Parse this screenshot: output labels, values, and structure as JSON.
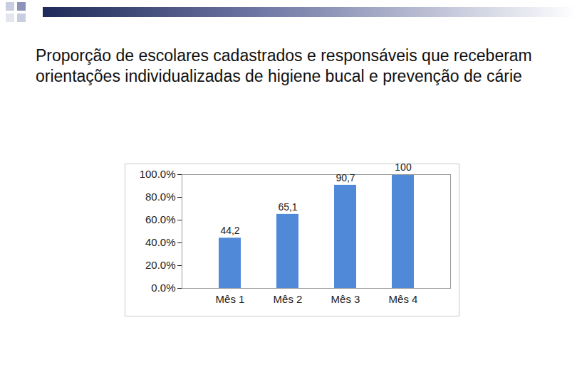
{
  "chart_data": {
    "type": "bar",
    "title": "Proporção de escolares cadastrados e responsáveis que receberam orientações individualizadas de higiene bucal e prevenção de cárie",
    "categories": [
      "Mês 1",
      "Mês 2",
      "Mês 3",
      "Mês 4"
    ],
    "values": [
      44.2,
      65.1,
      90.7,
      100
    ],
    "value_labels": [
      "44,2",
      "65,1",
      "90,7",
      "100"
    ],
    "data_labels": true,
    "color": "#5089d8",
    "ylim": [
      0,
      100
    ],
    "yticks": [
      {
        "value": 0,
        "label": "0.0%"
      },
      {
        "value": 20,
        "label": "20.0%"
      },
      {
        "value": 40,
        "label": "40.0%"
      },
      {
        "value": 60,
        "label": "60.0%"
      },
      {
        "value": 80,
        "label": "80.0%"
      },
      {
        "value": 100,
        "label": "100.0%"
      }
    ],
    "grid": false
  }
}
